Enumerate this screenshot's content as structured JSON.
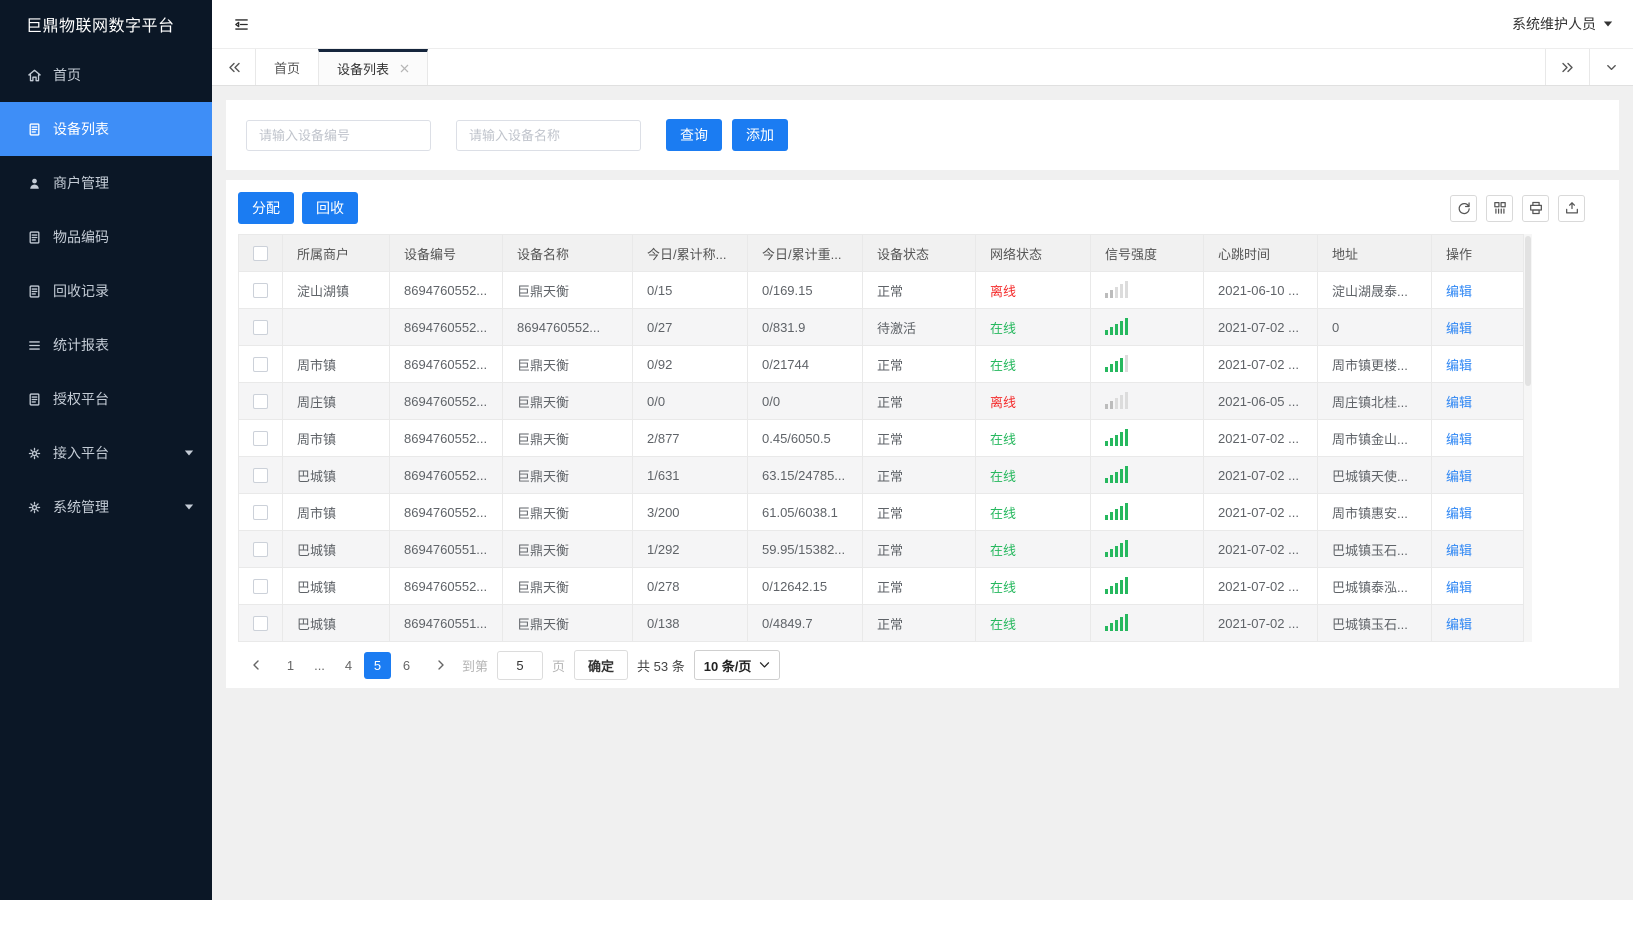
{
  "app": {
    "title": "巨鼎物联网数字平台",
    "user_menu": "系统维护人员"
  },
  "sidebar": {
    "items": [
      {
        "label": "首页",
        "icon": "home",
        "active": false,
        "caret": false
      },
      {
        "label": "设备列表",
        "icon": "doc",
        "active": true,
        "caret": false
      },
      {
        "label": "商户管理",
        "icon": "user",
        "active": false,
        "caret": false
      },
      {
        "label": "物品编码",
        "icon": "doc",
        "active": false,
        "caret": false
      },
      {
        "label": "回收记录",
        "icon": "doc",
        "active": false,
        "caret": false
      },
      {
        "label": "统计报表",
        "icon": "list",
        "active": false,
        "caret": false
      },
      {
        "label": "授权平台",
        "icon": "doc",
        "active": false,
        "caret": false
      },
      {
        "label": "接入平台",
        "icon": "gear",
        "active": false,
        "caret": true
      },
      {
        "label": "系统管理",
        "icon": "gear",
        "active": false,
        "caret": true
      }
    ]
  },
  "tabs": {
    "items": [
      {
        "label": "首页",
        "active": false,
        "closable": false
      },
      {
        "label": "设备列表",
        "active": true,
        "closable": true
      }
    ]
  },
  "filters": {
    "device_no_placeholder": "请输入设备编号",
    "device_name_placeholder": "请输入设备名称",
    "query_label": "查询",
    "add_label": "添加"
  },
  "toolbar": {
    "assign_label": "分配",
    "recycle_label": "回收",
    "icons": [
      "refresh-icon",
      "columns-icon",
      "print-icon",
      "export-icon"
    ]
  },
  "table": {
    "headers": [
      "所属商户",
      "设备编号",
      "设备名称",
      "今日/累计称...",
      "今日/累计重...",
      "设备状态",
      "网络状态",
      "信号强度",
      "心跳时间",
      "地址",
      "操作"
    ],
    "rows": [
      {
        "merchant": "淀山湖镇",
        "device_no": "8694760552...",
        "device_name": "巨鼎天衡",
        "today_count": "0/15",
        "today_weight": "0/169.15",
        "status": "正常",
        "network": "离线",
        "online": false,
        "signal": 0,
        "heartbeat": "2021-06-10 ...",
        "address": "淀山湖晟泰...",
        "action": "编辑"
      },
      {
        "merchant": "",
        "device_no": "8694760552...",
        "device_name": "8694760552...",
        "today_count": "0/27",
        "today_weight": "0/831.9",
        "status": "待激活",
        "network": "在线",
        "online": true,
        "signal": 5,
        "heartbeat": "2021-07-02 ...",
        "address": "0",
        "action": "编辑"
      },
      {
        "merchant": "周市镇",
        "device_no": "8694760552...",
        "device_name": "巨鼎天衡",
        "today_count": "0/92",
        "today_weight": "0/21744",
        "status": "正常",
        "network": "在线",
        "online": true,
        "signal": 4,
        "heartbeat": "2021-07-02 ...",
        "address": "周市镇更楼...",
        "action": "编辑"
      },
      {
        "merchant": "周庄镇",
        "device_no": "8694760552...",
        "device_name": "巨鼎天衡",
        "today_count": "0/0",
        "today_weight": "0/0",
        "status": "正常",
        "network": "离线",
        "online": false,
        "signal": 0,
        "heartbeat": "2021-06-05 ...",
        "address": "周庄镇北桂...",
        "action": "编辑"
      },
      {
        "merchant": "周市镇",
        "device_no": "8694760552...",
        "device_name": "巨鼎天衡",
        "today_count": "2/877",
        "today_weight": "0.45/6050.5",
        "status": "正常",
        "network": "在线",
        "online": true,
        "signal": 5,
        "heartbeat": "2021-07-02 ...",
        "address": "周市镇金山...",
        "action": "编辑"
      },
      {
        "merchant": "巴城镇",
        "device_no": "8694760552...",
        "device_name": "巨鼎天衡",
        "today_count": "1/631",
        "today_weight": "63.15/24785...",
        "status": "正常",
        "network": "在线",
        "online": true,
        "signal": 5,
        "heartbeat": "2021-07-02 ...",
        "address": "巴城镇天使...",
        "action": "编辑"
      },
      {
        "merchant": "周市镇",
        "device_no": "8694760552...",
        "device_name": "巨鼎天衡",
        "today_count": "3/200",
        "today_weight": "61.05/6038.1",
        "status": "正常",
        "network": "在线",
        "online": true,
        "signal": 5,
        "heartbeat": "2021-07-02 ...",
        "address": "周市镇惠安...",
        "action": "编辑"
      },
      {
        "merchant": "巴城镇",
        "device_no": "8694760551...",
        "device_name": "巨鼎天衡",
        "today_count": "1/292",
        "today_weight": "59.95/15382...",
        "status": "正常",
        "network": "在线",
        "online": true,
        "signal": 5,
        "heartbeat": "2021-07-02 ...",
        "address": "巴城镇玉石...",
        "action": "编辑"
      },
      {
        "merchant": "巴城镇",
        "device_no": "8694760552...",
        "device_name": "巨鼎天衡",
        "today_count": "0/278",
        "today_weight": "0/12642.15",
        "status": "正常",
        "network": "在线",
        "online": true,
        "signal": 5,
        "heartbeat": "2021-07-02 ...",
        "address": "巴城镇泰泓...",
        "action": "编辑"
      },
      {
        "merchant": "巴城镇",
        "device_no": "8694760551...",
        "device_name": "巨鼎天衡",
        "today_count": "0/138",
        "today_weight": "0/4849.7",
        "status": "正常",
        "network": "在线",
        "online": true,
        "signal": 5,
        "heartbeat": "2021-07-02 ...",
        "address": "巴城镇玉石...",
        "action": "编辑"
      }
    ]
  },
  "pagination": {
    "pages": [
      "1",
      "...",
      "4",
      "5",
      "6"
    ],
    "active_page": "5",
    "goto_label": "到第",
    "goto_value": "5",
    "unit_label": "页",
    "confirm_label": "确定",
    "total_label": "共 53 条",
    "page_size_label": "10 条/页"
  },
  "colors": {
    "primary": "#1b7cf2",
    "sidebar_bg": "#0b1726",
    "sidebar_active": "#3e8ef7",
    "online_green": "#26b85e",
    "offline_red": "#f42b2b",
    "edit_link": "#2f87f4"
  }
}
